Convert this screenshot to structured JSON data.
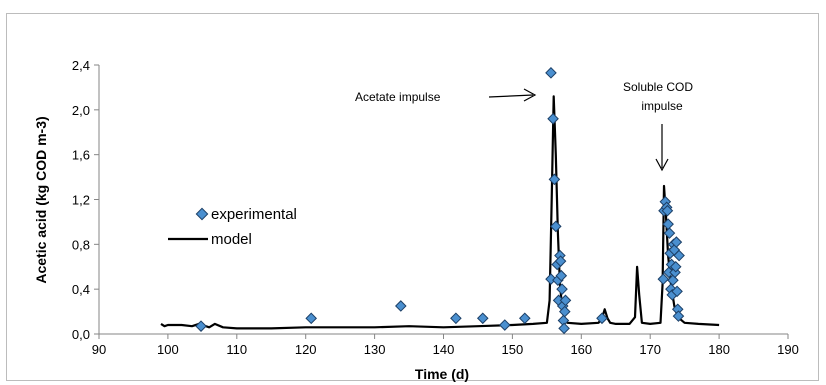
{
  "chart_data": {
    "type": "scatter",
    "xlabel": "Time (d)",
    "ylabel": "Acetic acid (kg COD m-3)",
    "xlim": [
      90,
      190
    ],
    "ylim": [
      0,
      2.4
    ],
    "x_ticks": [
      90,
      100,
      110,
      120,
      130,
      140,
      150,
      160,
      170,
      180,
      190
    ],
    "y_ticks": [
      {
        "v": 0.0,
        "label": "0,0"
      },
      {
        "v": 0.4,
        "label": "0,4"
      },
      {
        "v": 0.8,
        "label": "0,8"
      },
      {
        "v": 1.2,
        "label": "1,2"
      },
      {
        "v": 1.6,
        "label": "1,6"
      },
      {
        "v": 2.0,
        "label": "2,0"
      },
      {
        "v": 2.4,
        "label": "2,4"
      }
    ],
    "grid": false,
    "legend_position": "left",
    "series": [
      {
        "name": "experimental",
        "kind": "scatter",
        "color": "#4a8fcf",
        "points": [
          [
            104.8,
            0.07
          ],
          [
            120.8,
            0.14
          ],
          [
            133.8,
            0.25
          ],
          [
            141.8,
            0.14
          ],
          [
            145.7,
            0.14
          ],
          [
            148.9,
            0.08
          ],
          [
            151.8,
            0.14
          ],
          [
            155.6,
            2.33
          ],
          [
            155.6,
            0.49
          ],
          [
            155.9,
            1.92
          ],
          [
            156.1,
            1.38
          ],
          [
            156.3,
            0.96
          ],
          [
            156.5,
            0.62
          ],
          [
            156.6,
            0.48
          ],
          [
            156.7,
            0.3
          ],
          [
            156.9,
            0.7
          ],
          [
            157.0,
            0.65
          ],
          [
            157.1,
            0.52
          ],
          [
            157.2,
            0.4
          ],
          [
            157.3,
            0.25
          ],
          [
            157.4,
            0.12
          ],
          [
            157.5,
            0.05
          ],
          [
            157.6,
            0.2
          ],
          [
            157.7,
            0.3
          ],
          [
            163.0,
            0.14
          ],
          [
            171.9,
            0.49
          ],
          [
            172.0,
            1.1
          ],
          [
            172.2,
            1.18
          ],
          [
            172.4,
            1.13
          ],
          [
            172.5,
            1.1
          ],
          [
            172.6,
            0.98
          ],
          [
            172.7,
            0.55
          ],
          [
            172.8,
            0.9
          ],
          [
            172.9,
            0.72
          ],
          [
            173.0,
            0.4
          ],
          [
            173.1,
            0.62
          ],
          [
            173.2,
            0.35
          ],
          [
            173.3,
            0.48
          ],
          [
            173.4,
            0.8
          ],
          [
            173.5,
            0.75
          ],
          [
            173.6,
            0.55
          ],
          [
            173.7,
            0.6
          ],
          [
            173.8,
            0.82
          ],
          [
            173.9,
            0.38
          ],
          [
            174.0,
            0.22
          ],
          [
            174.1,
            0.16
          ],
          [
            174.2,
            0.7
          ]
        ]
      },
      {
        "name": "model",
        "kind": "line",
        "color": "#000000",
        "x": [
          99,
          99.5,
          100,
          102,
          103.5,
          104.5,
          105,
          106,
          106.8,
          108,
          110,
          115,
          120,
          125,
          130,
          135,
          140,
          145,
          150,
          153,
          155,
          155.4,
          155.7,
          156,
          156.3,
          156.6,
          156.9,
          157.2,
          157.5,
          158,
          160,
          162.5,
          163,
          163.4,
          163.8,
          164.2,
          165,
          167,
          167.8,
          168.1,
          168.4,
          168.8,
          170,
          171.5,
          171.8,
          172.0,
          172.3,
          172.6,
          173.0,
          173.5,
          174,
          175,
          177,
          180
        ],
        "y": [
          0.09,
          0.07,
          0.08,
          0.08,
          0.07,
          0.09,
          0.08,
          0.06,
          0.09,
          0.06,
          0.05,
          0.05,
          0.06,
          0.06,
          0.06,
          0.07,
          0.06,
          0.07,
          0.08,
          0.09,
          0.1,
          0.3,
          1.2,
          2.12,
          1.6,
          0.9,
          0.45,
          0.25,
          0.14,
          0.1,
          0.09,
          0.1,
          0.14,
          0.22,
          0.14,
          0.1,
          0.09,
          0.09,
          0.15,
          0.6,
          0.35,
          0.1,
          0.09,
          0.1,
          0.45,
          1.32,
          1.05,
          0.7,
          0.45,
          0.25,
          0.15,
          0.1,
          0.09,
          0.08
        ]
      }
    ],
    "annotations": [
      {
        "id": "acetate",
        "text": "Acetate impulse"
      },
      {
        "id": "cod",
        "lines": [
          "Soluble COD",
          "impulse"
        ]
      }
    ]
  }
}
